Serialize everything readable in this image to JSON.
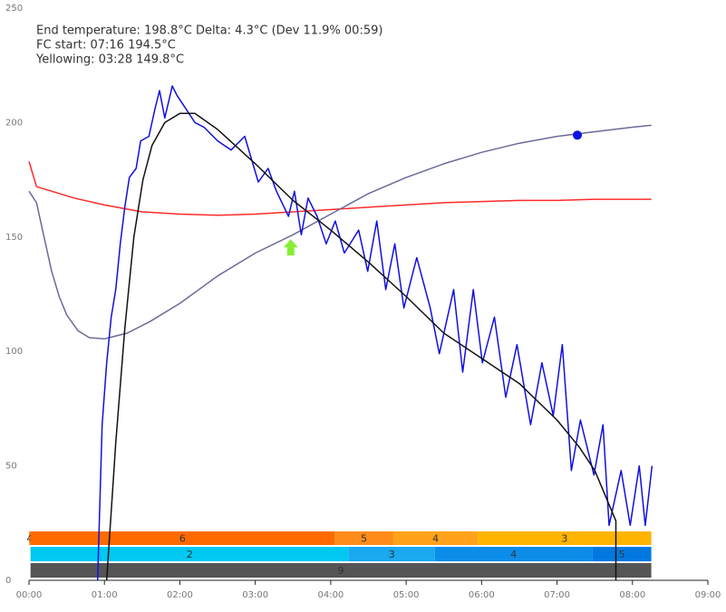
{
  "chart_data": {
    "type": "line",
    "annotations": [
      "End temperature: 198.8°C Delta: 4.3°C (Dev 11.9% 00:59)",
      "FC start: 07:16  194.5°C",
      "Yellowing: 03:28  149.8°C"
    ],
    "xlim": [
      0,
      9
    ],
    "xticks": [
      {
        "value": 0,
        "label": "00:00"
      },
      {
        "value": 1,
        "label": "01:00"
      },
      {
        "value": 2,
        "label": "02:00"
      },
      {
        "value": 3,
        "label": "03:00"
      },
      {
        "value": 4,
        "label": "04:00"
      },
      {
        "value": 5,
        "label": "05:00"
      },
      {
        "value": 6,
        "label": "06:00"
      },
      {
        "value": 7,
        "label": "07:00"
      },
      {
        "value": 8,
        "label": "08:00"
      },
      {
        "value": 9,
        "label": "09:00"
      }
    ],
    "ylim": [
      0,
      250
    ],
    "yticks": [
      0,
      50,
      100,
      150,
      200,
      250
    ],
    "series": [
      {
        "color": "#ff2a2a",
        "x": [
          0,
          0.1,
          0.3,
          0.6,
          1.0,
          1.5,
          2.0,
          2.5,
          3.0,
          3.5,
          4.0,
          4.5,
          5.0,
          5.5,
          6.0,
          6.5,
          7.0,
          7.5,
          8.25
        ],
        "values": [
          183,
          172,
          170,
          167,
          164,
          161,
          160,
          159.5,
          160,
          161,
          162,
          163,
          164,
          165,
          165.5,
          166,
          166,
          166.5,
          166.5
        ]
      },
      {
        "color": "#6a6a9a",
        "x": [
          0,
          0.1,
          0.2,
          0.3,
          0.4,
          0.5,
          0.65,
          0.8,
          1.0,
          1.3,
          1.6,
          2.0,
          2.5,
          3.0,
          3.5,
          4.0,
          4.5,
          5.0,
          5.5,
          6.0,
          6.5,
          7.0,
          7.5,
          8.0,
          8.25
        ],
        "values": [
          170,
          165,
          150,
          135,
          124,
          116,
          109,
          106,
          105.5,
          108,
          113,
          121,
          133,
          143,
          151,
          160,
          169,
          176,
          182,
          187,
          191,
          194,
          196,
          198,
          198.8
        ]
      },
      {
        "color": "#1010e0",
        "x": [
          0.91,
          0.97,
          1.03,
          1.09,
          1.15,
          1.21,
          1.27,
          1.33,
          1.42,
          1.48,
          1.59,
          1.67,
          1.73,
          1.8,
          1.9,
          1.96,
          2.08,
          2.2,
          2.32,
          2.5,
          2.68,
          2.86,
          3.04,
          3.17,
          3.28,
          3.44,
          3.52,
          3.61,
          3.7,
          3.82,
          3.94,
          4.06,
          4.18,
          4.37,
          4.49,
          4.61,
          4.73,
          4.85,
          4.97,
          5.14,
          5.32,
          5.44,
          5.63,
          5.75,
          5.89,
          6.01,
          6.17,
          6.32,
          6.47,
          6.65,
          6.8,
          6.95,
          7.07,
          7.19,
          7.31,
          7.49,
          7.61,
          7.69,
          7.85,
          7.97,
          8.09,
          8.17,
          8.26
        ],
        "values": [
          0,
          68,
          95,
          115,
          127,
          147,
          163,
          176,
          180,
          192,
          194,
          206,
          214,
          202,
          216,
          212,
          206,
          200,
          198,
          192,
          188,
          194,
          174,
          180,
          170,
          159,
          170,
          151,
          167,
          159,
          147,
          157,
          143,
          153,
          135,
          157,
          127,
          147,
          119,
          141,
          119,
          99,
          127,
          91,
          127,
          95,
          115,
          80,
          103,
          68,
          95,
          72,
          103,
          48,
          70,
          46,
          68,
          24,
          48,
          24,
          50,
          24,
          50
        ]
      },
      {
        "color": "#111111",
        "x": [
          1.03,
          1.15,
          1.27,
          1.39,
          1.51,
          1.63,
          1.8,
          2.0,
          2.2,
          2.5,
          3.0,
          3.5,
          4.0,
          4.5,
          5.0,
          5.5,
          6.0,
          6.5,
          7.0,
          7.3,
          7.5,
          7.78,
          7.78
        ],
        "values": [
          0,
          60,
          110,
          150,
          175,
          190,
          200,
          204,
          204,
          197,
          182,
          166,
          153,
          139,
          124,
          108,
          97,
          86,
          70,
          58,
          48,
          26,
          0
        ]
      }
    ],
    "markers": [
      {
        "shape": "circle",
        "color": "#1010e0",
        "x": 7.27,
        "y": 194.5
      },
      {
        "shape": "arrow",
        "color": "#88ee33",
        "x": 3.47,
        "y": 149.8
      }
    ],
    "phases": [
      [
        {
          "start": 0,
          "end": 0.02,
          "label": "4",
          "color": "#ff8c1a"
        },
        {
          "start": 0.02,
          "end": 4.05,
          "label": "6",
          "color": "#ff6a00"
        },
        {
          "start": 4.05,
          "end": 4.83,
          "label": "5",
          "color": "#ff8c1a"
        },
        {
          "start": 4.83,
          "end": 5.95,
          "label": "4",
          "color": "#ffa31a"
        },
        {
          "start": 5.95,
          "end": 8.25,
          "label": "3",
          "color": "#ffb400"
        }
      ],
      [
        {
          "start": 0.02,
          "end": 4.24,
          "label": "2",
          "color": "#00c8f0"
        },
        {
          "start": 4.24,
          "end": 5.38,
          "label": "3",
          "color": "#1aa8f0"
        },
        {
          "start": 5.38,
          "end": 7.47,
          "label": "4",
          "color": "#0a8ce8"
        },
        {
          "start": 7.47,
          "end": 8.25,
          "label": "5",
          "color": "#0078e0"
        }
      ],
      [
        {
          "start": 0.02,
          "end": 8.25,
          "label": "9",
          "color": "#555555"
        }
      ]
    ]
  }
}
